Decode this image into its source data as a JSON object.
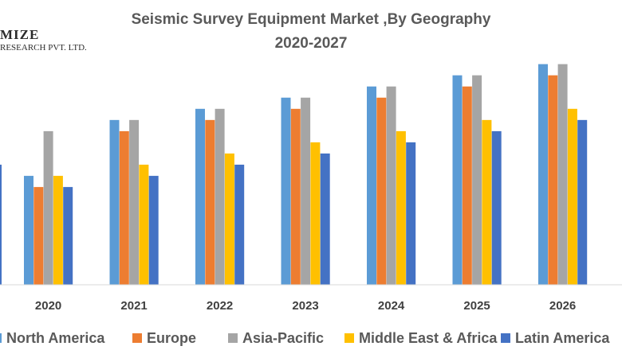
{
  "logo": {
    "line1": "MIZE",
    "line2": "RESEARCH PVT. LTD."
  },
  "chart_data": {
    "type": "bar",
    "title": "Seismic Survey Equipment Market ,By Geography",
    "subtitle": "2020-2027",
    "categories": [
      "2020",
      "2021",
      "2022",
      "2023",
      "2024",
      "2025",
      "2026"
    ],
    "series": [
      {
        "name": "North America",
        "color": "#5B9BD5",
        "values": [
          39,
          59,
          63,
          67,
          71,
          75,
          79
        ]
      },
      {
        "name": "Europe",
        "color": "#ED7D31",
        "values": [
          35,
          55,
          59,
          63,
          67,
          71,
          75
        ]
      },
      {
        "name": "Asia-Pacific",
        "color": "#A5A5A5",
        "values": [
          55,
          59,
          63,
          67,
          71,
          75,
          79
        ]
      },
      {
        "name": "Middle East & Africa",
        "color": "#FFC000",
        "values": [
          39,
          43,
          47,
          51,
          55,
          59,
          63
        ]
      },
      {
        "name": "Latin America",
        "color": "#4472C4",
        "values": [
          35,
          39,
          43,
          47,
          51,
          55,
          59
        ]
      }
    ],
    "partial_left_bar": {
      "series": "Latin America",
      "value": 43
    },
    "ylim": [
      0,
      90
    ],
    "grid": false,
    "legend_position": "bottom"
  }
}
